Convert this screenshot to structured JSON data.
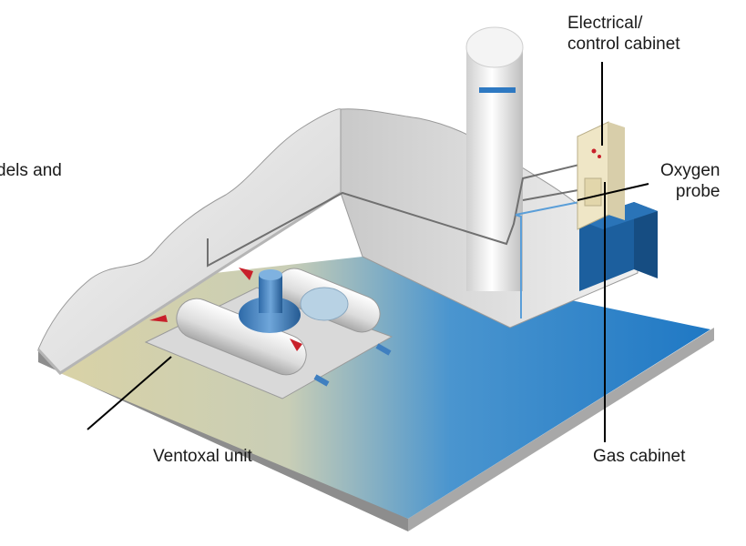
{
  "labels": {
    "partial_line": "dels and",
    "electrical_cabinet": [
      "Electrical/",
      "control cabinet"
    ],
    "oxygen_probe": [
      "Oxygen",
      "probe"
    ],
    "gas_cabinet": "Gas cabinet",
    "ventoxal_unit": "Ventoxal unit"
  },
  "colors": {
    "water_blue": "#2e86cc",
    "floor_sand": "#d6d0a8",
    "wall_grey": "#e6e6e6",
    "cabinet_cream": "#efe6c6",
    "gas_cabinet_blue": "#1c5f9e",
    "valve_red": "#c8202a",
    "pump_blue": "#3f7fc0"
  }
}
